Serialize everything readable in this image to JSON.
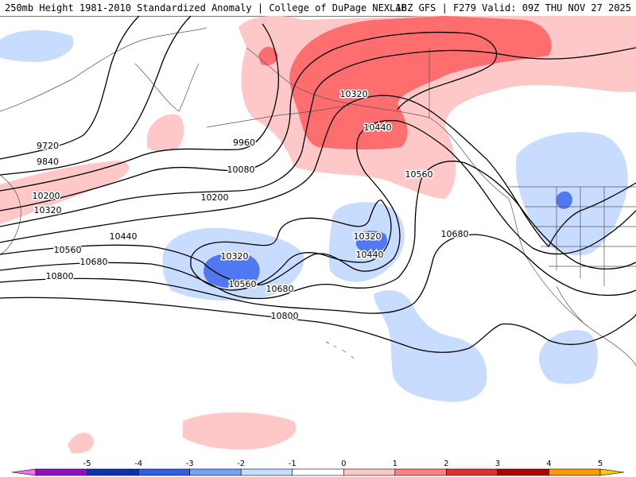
{
  "header": {
    "left": "250mb Height 1981-2010 Standardized Anomaly | College of DuPage NEXLAB",
    "right": "18Z GFS | F279 Valid: 09Z THU NOV 27 2025"
  },
  "colors": {
    "pos1": "#ffc8c8",
    "pos2": "#ff6e6e",
    "neg1": "#c8dcff",
    "neg2": "#5078f0",
    "contour": "#000000",
    "coast": "#555555"
  },
  "contours": {
    "labels": [
      "9720",
      "9840",
      "9960",
      "10080",
      "10200",
      "10200",
      "10320",
      "10320",
      "10320",
      "10320",
      "10440",
      "10440",
      "10440",
      "10560",
      "10560",
      "10560",
      "10680",
      "10680",
      "10680",
      "10800",
      "10800"
    ]
  },
  "colorbar": {
    "ticks": [
      "-5",
      "-4",
      "-3",
      "-2",
      "-1",
      "0",
      "1",
      "2",
      "3",
      "4",
      "5"
    ],
    "colors": [
      "#f070f0",
      "#9010c0",
      "#1030b0",
      "#3060e0",
      "#78a0f0",
      "#c8dcff",
      "#ffffff",
      "#ffc8c8",
      "#ff8080",
      "#e03030",
      "#b00000",
      "#ff9900",
      "#ffcc00"
    ]
  }
}
